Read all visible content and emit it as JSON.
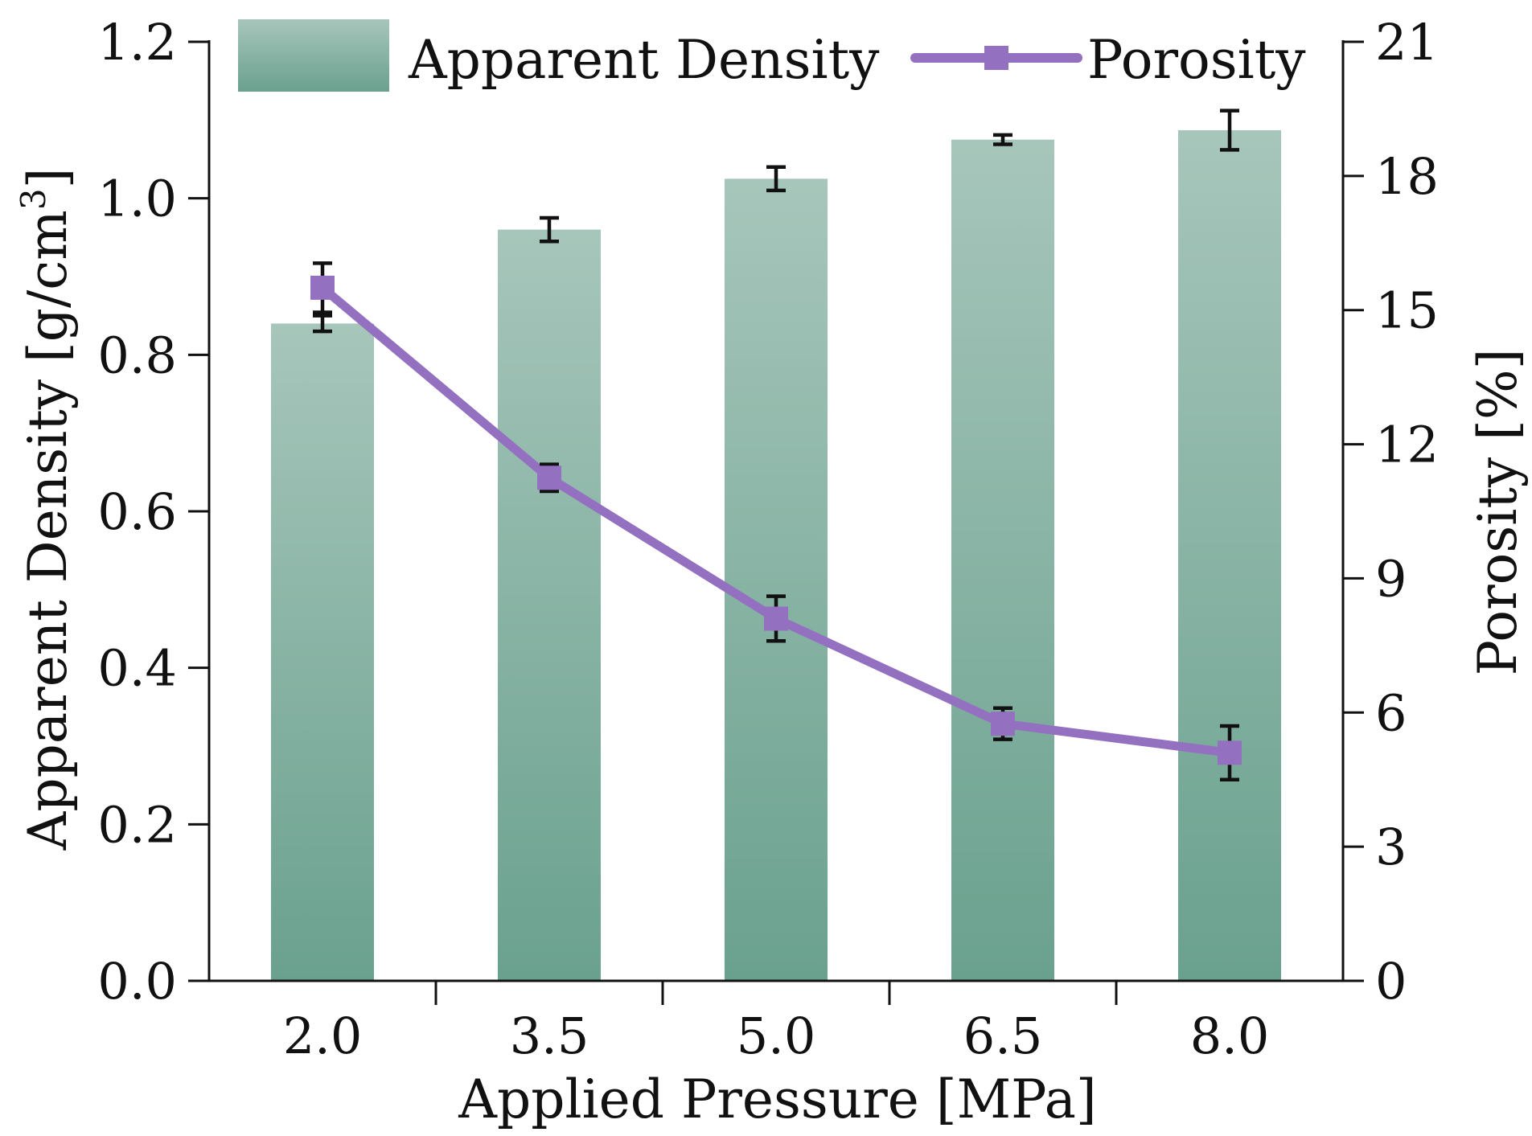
{
  "chart_data": {
    "type": "bar",
    "categories": [
      "2.0",
      "3.5",
      "5.0",
      "6.5",
      "8.0"
    ],
    "xlabel": "Applied Pressure [MPa]",
    "series": [
      {
        "name": "Apparent Density",
        "type": "bar",
        "axis": "left",
        "values": [
          0.84,
          0.96,
          1.025,
          1.075,
          1.087
        ],
        "errors": [
          0.01,
          0.015,
          0.015,
          0.006,
          0.025
        ],
        "color": "#6aa18e",
        "color_light": "#a7c6bb"
      },
      {
        "name": "Porosity",
        "type": "line",
        "axis": "right",
        "values": [
          15.5,
          11.25,
          8.1,
          5.75,
          5.1
        ],
        "errors": [
          0.55,
          0.3,
          0.5,
          0.35,
          0.6
        ],
        "color": "#9470c0"
      }
    ],
    "y_left": {
      "label": "Apparent Density [g/cm",
      "label_sup": "3",
      "label_end": "]",
      "ylim": [
        0,
        1.2
      ],
      "ticks": [
        "0.0",
        "0.2",
        "0.4",
        "0.6",
        "0.8",
        "1.0",
        "1.2"
      ]
    },
    "y_right": {
      "label": "Porosity [%]",
      "ylim": [
        0,
        21
      ],
      "ticks": [
        "0",
        "3",
        "6",
        "9",
        "12",
        "15",
        "18",
        "21"
      ]
    },
    "legend": {
      "position": "top",
      "items": [
        "Apparent Density",
        "Porosity"
      ]
    },
    "grid": false
  }
}
